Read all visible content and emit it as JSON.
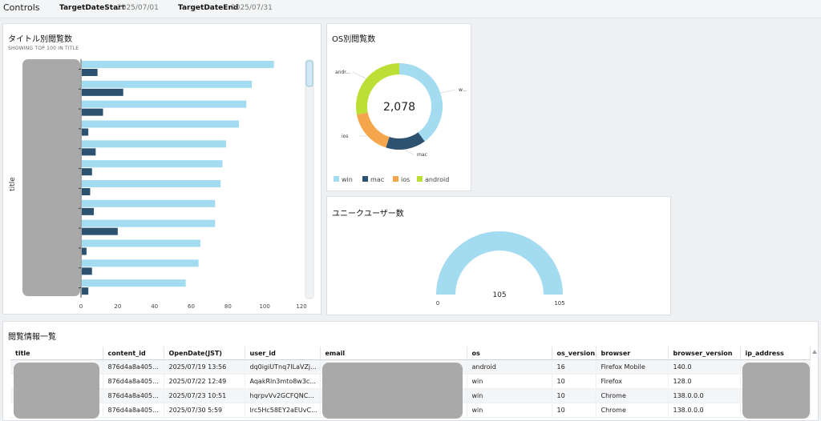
{
  "controls": {
    "title": "Controls",
    "start_label": "TargetDateStart",
    "start_value": "2025/07/01",
    "end_label": "TargetDateEnd",
    "end_value": "2025/07/31"
  },
  "bar_panel": {
    "title": "タイトル別閲覧数",
    "subtitle": "SHOWING TOP 100 IN TITLE",
    "chart_data": {
      "type": "bar",
      "orientation": "horizontal",
      "ylabel": "title",
      "xlim": [
        0,
        120
      ],
      "xticks": [
        0,
        20,
        40,
        60,
        80,
        100,
        120
      ],
      "series": [
        {
          "values": [
            105,
            93,
            90,
            86,
            79,
            77,
            76,
            73,
            73,
            65,
            64,
            57
          ],
          "color": "#a3dbf1"
        },
        {
          "values": [
            9,
            23,
            12,
            4,
            8,
            6,
            5,
            7,
            20,
            3,
            6,
            4
          ],
          "color": "#2c5270"
        }
      ]
    }
  },
  "os_panel": {
    "title": "OS別閲覧数",
    "total": "2,078",
    "chart_data": {
      "type": "pie",
      "labels": [
        "win",
        "mac",
        "ios",
        "android"
      ],
      "slice_labels": [
        "w...",
        "mac",
        "ios",
        "andr..."
      ],
      "values": [
        40,
        15,
        17,
        28
      ],
      "colors": [
        "#a3dbf1",
        "#2c5270",
        "#f5a54c",
        "#bbdf35"
      ]
    }
  },
  "gauge_panel": {
    "title": "ユニークユーザー数",
    "value": "105",
    "min_label": "0",
    "max_label": "105",
    "fill_fraction": 1.0,
    "color": "#a3dbf1"
  },
  "table_panel": {
    "title": "閲覧情報一覧",
    "columns": [
      "title",
      "content_id",
      "OpenDate(JST)",
      "user_id",
      "email",
      "os",
      "os_version",
      "browser",
      "browser_version",
      "ip_address"
    ],
    "rows": [
      [
        "",
        "876d4a8a405...",
        "2025/07/19 13:56",
        "dq0igiUTnq7ILaVZj...",
        "",
        "android",
        "16",
        "Firefox Mobile",
        "140.0",
        ""
      ],
      [
        "",
        "876d4a8a405...",
        "2025/07/22 12:49",
        "AqakRln3mto8w3c...",
        "",
        "win",
        "10",
        "Firefox",
        "128.0",
        ""
      ],
      [
        "",
        "876d4a8a405...",
        "2025/07/23 10:51",
        "hqrpvVv2GCFQNC...",
        "",
        "win",
        "10",
        "Chrome",
        "138.0.0.0",
        ""
      ],
      [
        "",
        "876d4a8a405...",
        "2025/07/30 5:59",
        "lrc5Hc58EY2aEUvC...",
        "",
        "win",
        "10",
        "Chrome",
        "138.0.0.0",
        ""
      ]
    ]
  }
}
